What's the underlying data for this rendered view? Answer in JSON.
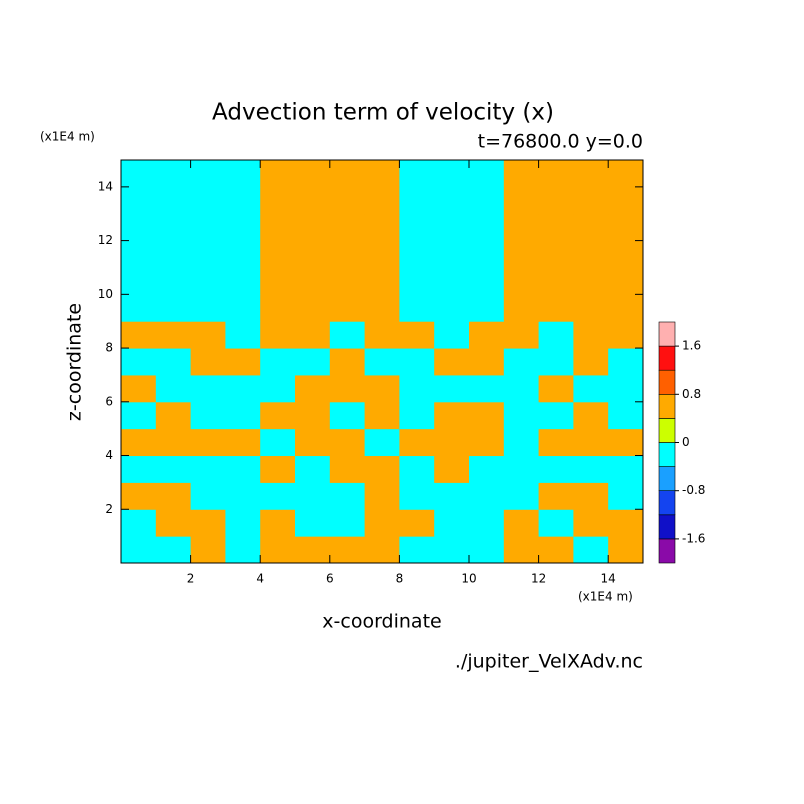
{
  "chart_data": {
    "type": "contour",
    "title": "Advection term of velocity (x)",
    "subtitle": "t=76800.0 y=0.0",
    "x_label": "x-coordinate",
    "y_label": "z-coordinate",
    "x_unit": "(x1E4 m)",
    "y_unit": "(x1E4 m)",
    "source": "./jupiter_VelXAdv.nc",
    "xlim": [
      0,
      15
    ],
    "ylim": [
      0,
      15
    ],
    "xticks": [
      2,
      4,
      6,
      8,
      10,
      12,
      14
    ],
    "yticks": [
      2,
      4,
      6,
      8,
      10,
      12,
      14
    ],
    "x": [
      0.5,
      1.5,
      2.5,
      3.5,
      4.5,
      5.5,
      6.5,
      7.5,
      8.5,
      9.5,
      10.5,
      11.5,
      12.5,
      13.5,
      14.5
    ],
    "y": [
      0.5,
      1.5,
      2.5,
      3.5,
      4.5,
      5.5,
      6.5,
      7.5,
      8.5,
      9.5,
      10.5,
      11.5,
      12.5,
      13.5,
      14.5
    ],
    "z": [
      [
        -0.4,
        -0.4,
        0.4,
        -0.4,
        0.4,
        0.4,
        0.4,
        0.4,
        -0.4,
        -0.4,
        -0.4,
        0.4,
        0.4,
        -0.4,
        0.4
      ],
      [
        -0.4,
        0.4,
        0.4,
        -0.4,
        0.4,
        -0.4,
        -0.4,
        0.4,
        0.4,
        -0.4,
        -0.4,
        0.4,
        -0.4,
        0.4,
        0.4
      ],
      [
        0.4,
        0.4,
        -0.4,
        -0.4,
        -0.4,
        -0.4,
        -0.4,
        0.4,
        -0.4,
        -0.4,
        -0.4,
        -0.4,
        0.4,
        0.4,
        -0.4
      ],
      [
        -0.4,
        -0.4,
        -0.4,
        -0.4,
        0.4,
        -0.4,
        0.4,
        0.4,
        -0.4,
        0.4,
        -0.4,
        -0.4,
        -0.4,
        -0.4,
        -0.4
      ],
      [
        0.4,
        0.4,
        0.4,
        0.4,
        -0.4,
        0.4,
        0.4,
        -0.4,
        0.4,
        0.4,
        0.4,
        -0.4,
        0.4,
        0.4,
        0.4
      ],
      [
        -0.4,
        0.4,
        -0.4,
        -0.4,
        0.4,
        0.4,
        -0.4,
        0.4,
        -0.4,
        0.4,
        0.4,
        -0.4,
        -0.4,
        0.4,
        -0.4
      ],
      [
        0.4,
        -0.4,
        -0.4,
        -0.4,
        -0.4,
        0.4,
        0.4,
        0.4,
        -0.4,
        -0.4,
        -0.4,
        -0.4,
        0.4,
        -0.4,
        -0.4
      ],
      [
        -0.4,
        -0.4,
        0.4,
        0.4,
        -0.4,
        -0.4,
        0.4,
        -0.4,
        -0.4,
        0.4,
        0.4,
        -0.4,
        -0.4,
        0.4,
        -0.4
      ],
      [
        0.4,
        0.4,
        0.4,
        -0.4,
        0.4,
        0.4,
        -0.4,
        0.4,
        0.4,
        -0.4,
        0.4,
        0.4,
        -0.4,
        0.4,
        0.4
      ],
      [
        -0.4,
        -0.4,
        -0.4,
        -0.4,
        0.4,
        0.4,
        0.4,
        0.4,
        -0.4,
        -0.4,
        -0.4,
        0.4,
        0.4,
        0.4,
        0.4
      ],
      [
        -0.4,
        -0.4,
        -0.4,
        -0.4,
        0.4,
        0.4,
        0.4,
        0.4,
        -0.4,
        -0.4,
        -0.4,
        0.4,
        0.4,
        0.4,
        0.4
      ],
      [
        -0.4,
        -0.4,
        -0.4,
        -0.4,
        0.4,
        0.4,
        0.4,
        0.4,
        -0.4,
        -0.4,
        -0.4,
        0.4,
        0.4,
        0.4,
        0.4
      ],
      [
        -0.4,
        -0.4,
        -0.4,
        -0.4,
        0.4,
        0.4,
        0.4,
        0.4,
        -0.4,
        -0.4,
        -0.4,
        0.4,
        0.4,
        0.4,
        0.4
      ],
      [
        -0.4,
        -0.4,
        -0.4,
        -0.4,
        0.4,
        0.4,
        0.4,
        0.4,
        -0.4,
        -0.4,
        -0.4,
        0.4,
        0.4,
        0.4,
        0.4
      ],
      [
        -0.4,
        -0.4,
        -0.4,
        -0.4,
        0.4,
        0.4,
        0.4,
        0.4,
        -0.4,
        -0.4,
        -0.4,
        0.4,
        0.4,
        0.4,
        0.4
      ]
    ],
    "levels": [
      -2,
      -1.6,
      -1.2,
      -0.8,
      -0.4,
      0,
      0.4,
      0.8,
      1.2,
      1.6,
      2
    ],
    "colors": [
      "#8a0aa8",
      "#1010c8",
      "#1444f0",
      "#1aa0ff",
      "#00ffff",
      "#ccff00",
      "#ffaa00",
      "#ff6000",
      "#ff1010",
      "#ffb0b0"
    ],
    "colorbar_ticks": [
      1.6,
      0.8,
      0,
      -0.8,
      -1.6
    ]
  }
}
